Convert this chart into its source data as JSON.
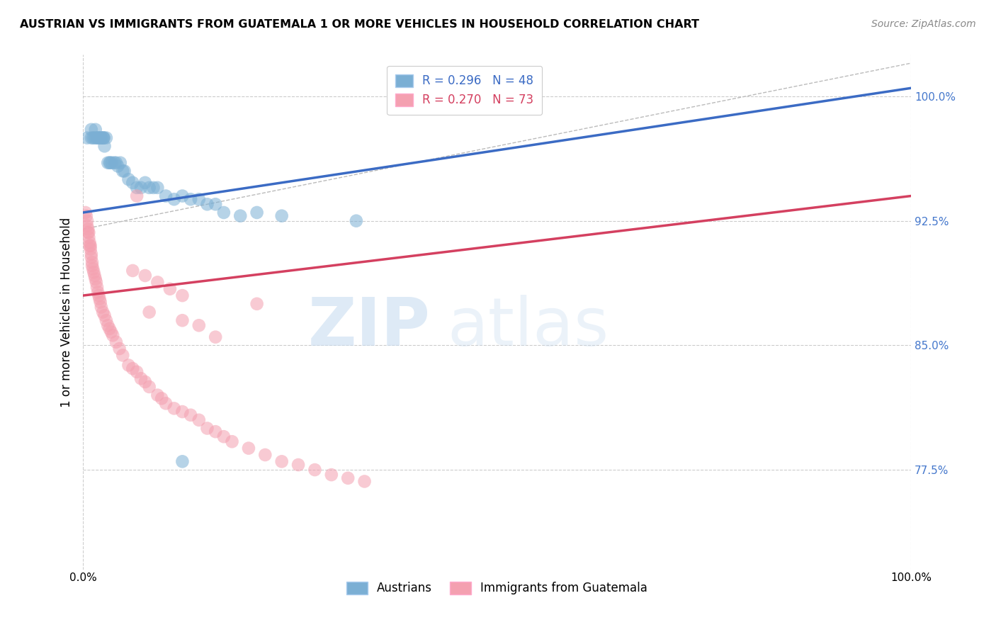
{
  "title": "AUSTRIAN VS IMMIGRANTS FROM GUATEMALA 1 OR MORE VEHICLES IN HOUSEHOLD CORRELATION CHART",
  "source": "Source: ZipAtlas.com",
  "ylabel": "1 or more Vehicles in Household",
  "ytick_labels": [
    "77.5%",
    "85.0%",
    "92.5%",
    "100.0%"
  ],
  "ytick_values": [
    0.775,
    0.85,
    0.925,
    1.0
  ],
  "xmin": 0.0,
  "xmax": 1.0,
  "ymin": 0.715,
  "ymax": 1.025,
  "blue_R": 0.296,
  "blue_N": 48,
  "pink_R": 0.27,
  "pink_N": 73,
  "blue_color": "#7BAFD4",
  "pink_color": "#F4A0B0",
  "blue_line_color": "#3B6BC4",
  "pink_line_color": "#D44060",
  "legend_blue_label": "Austrians",
  "legend_pink_label": "Immigrants from Guatemala",
  "blue_line_x0": 0.0,
  "blue_line_y0": 0.93,
  "blue_line_x1": 1.0,
  "blue_line_y1": 1.005,
  "pink_line_x0": 0.0,
  "pink_line_y0": 0.88,
  "pink_line_x1": 1.0,
  "pink_line_y1": 0.94,
  "ref_line_x0": 0.0,
  "ref_line_y0": 0.92,
  "ref_line_x1": 1.0,
  "ref_line_y1": 1.02,
  "blue_x": [
    0.005,
    0.01,
    0.01,
    0.012,
    0.014,
    0.015,
    0.016,
    0.018,
    0.018,
    0.02,
    0.022,
    0.022,
    0.024,
    0.025,
    0.025,
    0.026,
    0.028,
    0.03,
    0.032,
    0.033,
    0.035,
    0.038,
    0.04,
    0.042,
    0.045,
    0.048,
    0.05,
    0.055,
    0.06,
    0.065,
    0.07,
    0.075,
    0.08,
    0.085,
    0.09,
    0.1,
    0.11,
    0.12,
    0.13,
    0.14,
    0.15,
    0.16,
    0.17,
    0.19,
    0.21,
    0.24,
    0.33,
    0.12
  ],
  "blue_y": [
    0.975,
    0.975,
    0.98,
    0.975,
    0.975,
    0.98,
    0.975,
    0.975,
    0.975,
    0.975,
    0.975,
    0.975,
    0.975,
    0.975,
    0.975,
    0.97,
    0.975,
    0.96,
    0.96,
    0.96,
    0.96,
    0.96,
    0.96,
    0.958,
    0.96,
    0.955,
    0.955,
    0.95,
    0.948,
    0.945,
    0.945,
    0.948,
    0.945,
    0.945,
    0.945,
    0.94,
    0.938,
    0.94,
    0.938,
    0.938,
    0.935,
    0.935,
    0.93,
    0.928,
    0.93,
    0.928,
    0.925,
    0.78
  ],
  "pink_x": [
    0.003,
    0.004,
    0.005,
    0.005,
    0.006,
    0.006,
    0.007,
    0.007,
    0.008,
    0.008,
    0.009,
    0.009,
    0.01,
    0.01,
    0.011,
    0.011,
    0.012,
    0.013,
    0.014,
    0.015,
    0.016,
    0.017,
    0.018,
    0.019,
    0.02,
    0.021,
    0.022,
    0.024,
    0.026,
    0.028,
    0.03,
    0.032,
    0.034,
    0.036,
    0.04,
    0.044,
    0.048,
    0.055,
    0.06,
    0.065,
    0.07,
    0.075,
    0.08,
    0.09,
    0.095,
    0.1,
    0.11,
    0.12,
    0.13,
    0.14,
    0.15,
    0.16,
    0.17,
    0.18,
    0.2,
    0.22,
    0.24,
    0.26,
    0.28,
    0.3,
    0.32,
    0.34,
    0.16,
    0.08,
    0.12,
    0.14,
    0.06,
    0.075,
    0.09,
    0.105,
    0.12,
    0.21,
    0.065
  ],
  "pink_y": [
    0.93,
    0.928,
    0.925,
    0.922,
    0.92,
    0.918,
    0.918,
    0.915,
    0.912,
    0.91,
    0.91,
    0.908,
    0.905,
    0.903,
    0.9,
    0.898,
    0.896,
    0.894,
    0.892,
    0.89,
    0.888,
    0.885,
    0.882,
    0.88,
    0.878,
    0.876,
    0.873,
    0.87,
    0.868,
    0.865,
    0.862,
    0.86,
    0.858,
    0.856,
    0.852,
    0.848,
    0.844,
    0.838,
    0.836,
    0.834,
    0.83,
    0.828,
    0.825,
    0.82,
    0.818,
    0.815,
    0.812,
    0.81,
    0.808,
    0.805,
    0.8,
    0.798,
    0.795,
    0.792,
    0.788,
    0.784,
    0.78,
    0.778,
    0.775,
    0.772,
    0.77,
    0.768,
    0.855,
    0.87,
    0.865,
    0.862,
    0.895,
    0.892,
    0.888,
    0.884,
    0.88,
    0.875,
    0.94
  ]
}
